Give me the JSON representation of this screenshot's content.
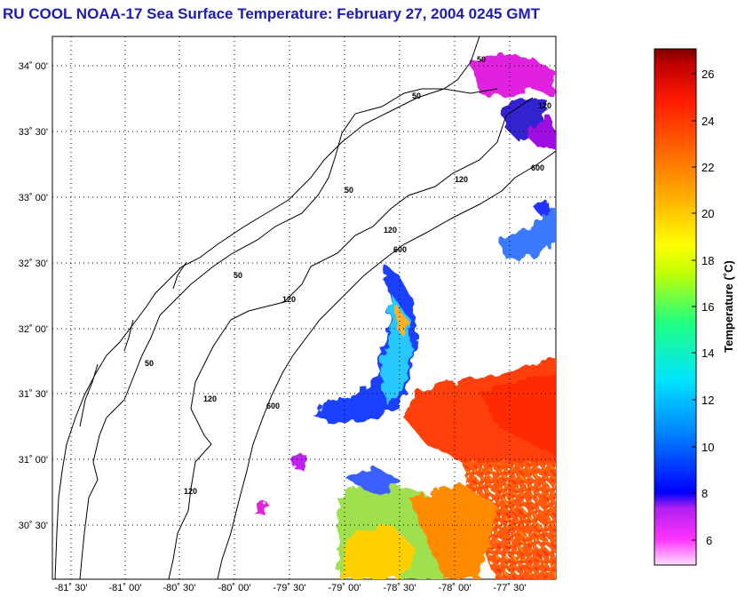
{
  "title": "RU COOL  NOAA-17  Sea Surface Temperature:  February 27, 2004 0245 GMT",
  "map": {
    "lat_ticks": [
      "34˚ 00'",
      "33˚ 30'",
      "33˚ 00'",
      "32˚ 30'",
      "32˚ 00'",
      "31˚ 30'",
      "31˚ 00'",
      "30˚ 30'"
    ],
    "lon_ticks": [
      "-81˚ 30'",
      "-81˚ 00'",
      "-80˚ 30'",
      "-80˚ 00'",
      "-79˚ 30'",
      "-79˚ 00'",
      "-78˚ 30'",
      "-78˚ 00'",
      "-77˚ 30'"
    ],
    "contour_labels": [
      "50",
      "50",
      "50",
      "50",
      "50",
      "120",
      "120",
      "120",
      "120",
      "120",
      "120",
      "600",
      "600",
      "600"
    ]
  },
  "colorbar": {
    "label": "Temperature (˚C)",
    "ticks": [
      "26",
      "24",
      "22",
      "20",
      "18",
      "16",
      "14",
      "12",
      "10",
      "8",
      "6"
    ],
    "colors": {
      "deep_red": "#7a0000",
      "red": "#ff1a00",
      "orange": "#ff8c00",
      "yellow": "#ffff00",
      "green": "#4fff4f",
      "cyan": "#00e5ff",
      "blue": "#0000ff",
      "magenta": "#ff00ff"
    }
  }
}
